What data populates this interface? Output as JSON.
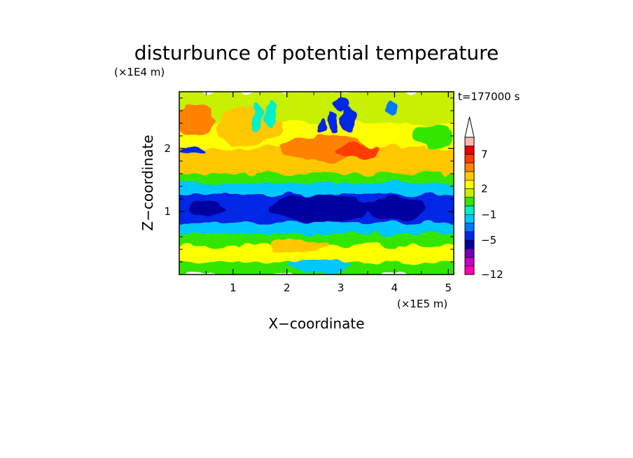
{
  "chart_data": {
    "type": "heatmap",
    "title": "disturbunce of potential temperature",
    "time_label": "t=177000 s",
    "xlabel": "X−coordinate",
    "ylabel": "Z−coordinate",
    "x_unit": "(×1E5 m)",
    "y_unit": "(×1E4 m)",
    "xlim": [
      0,
      5.1
    ],
    "ylim": [
      0,
      2.9
    ],
    "x_ticks": [
      1,
      2,
      3,
      4,
      5
    ],
    "y_ticks": [
      1,
      2
    ],
    "colorbar": {
      "levels": [
        -12,
        -11,
        -9,
        -7,
        -5,
        -4,
        -3,
        -1,
        0,
        1,
        2,
        3,
        5,
        6,
        7,
        9,
        11
      ],
      "labeled_ticks": [
        {
          "value": -12,
          "label": "−12"
        },
        {
          "value": -5,
          "label": "−5"
        },
        {
          "value": -1,
          "label": "−1"
        },
        {
          "value": 2,
          "label": "2"
        },
        {
          "value": 7,
          "label": "7"
        }
      ],
      "colors": [
        "#ff00b4",
        "#c800c8",
        "#7800b4",
        "#0000a0",
        "#0028e6",
        "#0078ff",
        "#00c8ff",
        "#00f0c8",
        "#32e600",
        "#c8f000",
        "#ffff00",
        "#ffc800",
        "#ff8200",
        "#ff3c00",
        "#e60000",
        "#ffb4b4"
      ],
      "extend_max": true
    },
    "grid": false,
    "bands": [
      {
        "z": [
          0.0,
          0.2
        ],
        "level": 8
      },
      {
        "z": [
          0.2,
          0.45
        ],
        "level": 10
      },
      {
        "z": [
          0.45,
          0.65
        ],
        "level": 8
      },
      {
        "z": [
          0.65,
          0.82
        ],
        "level": 6
      },
      {
        "z": [
          0.82,
          1.28
        ],
        "level": 4
      },
      {
        "z": [
          1.28,
          1.45
        ],
        "level": 6
      },
      {
        "z": [
          1.45,
          1.6
        ],
        "level": 8
      },
      {
        "z": [
          1.6,
          2.0
        ],
        "level": 11
      },
      {
        "z": [
          2.0,
          2.4
        ],
        "level": 10
      },
      {
        "z": [
          2.4,
          2.9
        ],
        "level": 9
      }
    ],
    "features": [
      {
        "x": 2.6,
        "z": 1.05,
        "rx": 0.9,
        "rz": 0.22,
        "level": 3
      },
      {
        "x": 4.0,
        "z": 1.05,
        "rx": 0.55,
        "rz": 0.18,
        "level": 3
      },
      {
        "x": 0.5,
        "z": 1.05,
        "rx": 0.35,
        "rz": 0.12,
        "level": 3
      },
      {
        "x": 0.3,
        "z": 2.45,
        "rx": 0.35,
        "rz": 0.25,
        "level": 12
      },
      {
        "x": 0.25,
        "z": 1.95,
        "rx": 0.25,
        "rz": 0.06,
        "level": 4
      },
      {
        "x": 2.7,
        "z": 2.0,
        "rx": 0.8,
        "rz": 0.2,
        "level": 12
      },
      {
        "x": 3.3,
        "z": 1.95,
        "rx": 0.4,
        "rz": 0.12,
        "level": 13
      },
      {
        "x": 1.3,
        "z": 2.35,
        "rx": 0.6,
        "rz": 0.3,
        "level": 11
      },
      {
        "x": 4.7,
        "z": 2.2,
        "rx": 0.35,
        "rz": 0.2,
        "level": 8
      },
      {
        "x": 3.0,
        "z": 2.7,
        "rx": 0.15,
        "rz": 0.08,
        "level": 4
      },
      {
        "x": 3.15,
        "z": 2.45,
        "rx": 0.15,
        "rz": 0.22,
        "level": 4
      },
      {
        "x": 2.85,
        "z": 2.4,
        "rx": 0.09,
        "rz": 0.18,
        "level": 4
      },
      {
        "x": 2.65,
        "z": 2.35,
        "rx": 0.07,
        "rz": 0.12,
        "level": 4
      },
      {
        "x": 3.95,
        "z": 2.65,
        "rx": 0.1,
        "rz": 0.12,
        "level": 5
      },
      {
        "x": 1.7,
        "z": 2.55,
        "rx": 0.12,
        "rz": 0.22,
        "level": 7
      },
      {
        "x": 1.45,
        "z": 2.5,
        "rx": 0.1,
        "rz": 0.2,
        "level": 7
      },
      {
        "x": 2.2,
        "z": 0.45,
        "rx": 0.55,
        "rz": 0.12,
        "level": 11
      },
      {
        "x": 1.4,
        "z": 0.4,
        "rx": 0.3,
        "rz": 0.1,
        "level": 10
      },
      {
        "x": 3.5,
        "z": 0.4,
        "rx": 0.4,
        "rz": 0.1,
        "level": 10
      },
      {
        "x": 2.6,
        "z": 0.15,
        "rx": 0.6,
        "rz": 0.1,
        "level": 6
      }
    ]
  }
}
